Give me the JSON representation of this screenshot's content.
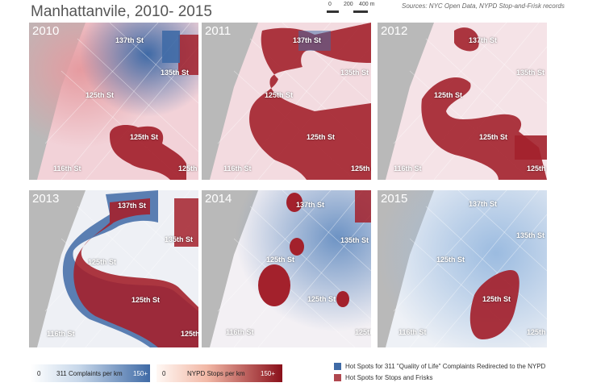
{
  "title": "Manhattanvile, 2010- 2015",
  "scale": {
    "labels": [
      "0",
      "200",
      "400 m"
    ]
  },
  "sources": "Sources: NYC Open Data, NYPD Stop-and-Frisk records",
  "colors": {
    "blue_hotspot": "#3f6aa6",
    "red_hotspot": "#a3212c",
    "land": "#f3eef1",
    "water": "#b9b9b9"
  },
  "panels": [
    {
      "year": "2010",
      "labels": [
        "137th St",
        "135th St",
        "125th St",
        "125th St",
        "116th St",
        "125th"
      ]
    },
    {
      "year": "2011",
      "labels": [
        "137th St",
        "135th St",
        "125th St",
        "125th St",
        "116th St",
        "125th"
      ]
    },
    {
      "year": "2012",
      "labels": [
        "137th St",
        "135th St",
        "125th St",
        "125th St",
        "116th St",
        "125th"
      ]
    },
    {
      "year": "2013",
      "labels": [
        "137th St",
        "135th St",
        "125th St",
        "125th St",
        "116th St",
        "125th"
      ]
    },
    {
      "year": "2014",
      "labels": [
        "137th St",
        "135th St",
        "125th St",
        "125th St",
        "116th St",
        "125th"
      ]
    },
    {
      "year": "2015",
      "labels": [
        "137th St",
        "135th St",
        "125th St",
        "125th St",
        "116th St",
        "125th"
      ]
    }
  ],
  "legend": {
    "complaints": {
      "min": "0",
      "label": "311 Complaints per km",
      "max": "150+"
    },
    "stops": {
      "min": "0",
      "label": "NYPD Stops per km",
      "max": "150+"
    },
    "keys": [
      "Hot Spots for 311 \"Quality of Life\" Complaints Redirected to the NYPD",
      "Hot Spots for Stops and Frisks"
    ]
  }
}
